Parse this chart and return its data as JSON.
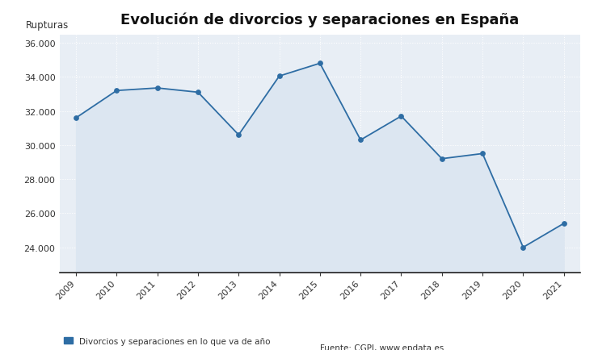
{
  "title": "Evolución de divorcios y separaciones en España",
  "ylabel": "Rupturas",
  "years": [
    2009,
    2010,
    2011,
    2012,
    2013,
    2014,
    2015,
    2016,
    2017,
    2018,
    2019,
    2020,
    2021
  ],
  "values": [
    31600,
    33200,
    33350,
    33100,
    30600,
    34050,
    34800,
    30300,
    31700,
    29200,
    29500,
    24000,
    25400
  ],
  "line_color": "#2e6da4",
  "fill_color": "#dce6f1",
  "marker_color": "#2e6da4",
  "background_color": "#e8eef5",
  "fig_background": "#ffffff",
  "grid_color": "#ffffff",
  "ylim_min": 22500,
  "ylim_max": 36500,
  "yticks": [
    24000,
    26000,
    28000,
    30000,
    32000,
    34000,
    36000
  ],
  "legend_label": "Divorcios y separaciones en lo que va de año",
  "source_text": "Fuente: CGPJ, www.epdata.es",
  "title_fontsize": 13,
  "axis_label_fontsize": 8.5,
  "tick_fontsize": 8,
  "legend_fontsize": 7.5
}
